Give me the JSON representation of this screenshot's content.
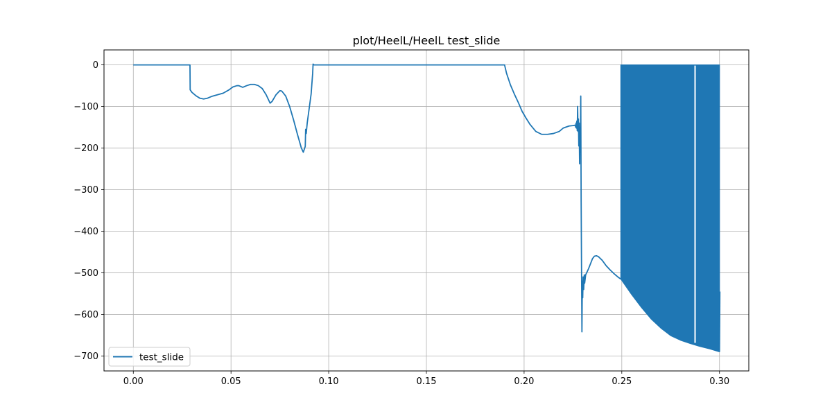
{
  "chart_data": {
    "type": "line",
    "title": "plot/HeelL/HeelL test_slide",
    "xlabel": "",
    "ylabel": "",
    "xlim": [
      -0.015,
      0.315
    ],
    "ylim": [
      -736,
      36
    ],
    "xticks": [
      0.0,
      0.05,
      0.1,
      0.15,
      0.2,
      0.25,
      0.3
    ],
    "xtick_labels": [
      "0.00",
      "0.05",
      "0.10",
      "0.15",
      "0.20",
      "0.25",
      "0.30"
    ],
    "yticks": [
      0,
      -100,
      -200,
      -300,
      -400,
      -500,
      -600,
      -700
    ],
    "ytick_labels": [
      "0",
      "−100",
      "−200",
      "−300",
      "−400",
      "−500",
      "−600",
      "−700"
    ],
    "grid": true,
    "legend": {
      "position": "lower-left",
      "entries": [
        "test_slide"
      ]
    },
    "series": [
      {
        "name": "test_slide",
        "color": "#1f77b4",
        "points": [
          [
            0.0,
            0
          ],
          [
            0.029,
            0
          ],
          [
            0.0291,
            -60
          ],
          [
            0.03,
            -66
          ],
          [
            0.032,
            -74
          ],
          [
            0.034,
            -80
          ],
          [
            0.036,
            -82
          ],
          [
            0.038,
            -80
          ],
          [
            0.04,
            -76
          ],
          [
            0.043,
            -72
          ],
          [
            0.046,
            -68
          ],
          [
            0.049,
            -60
          ],
          [
            0.051,
            -53
          ],
          [
            0.053,
            -50
          ],
          [
            0.054,
            -50
          ],
          [
            0.056,
            -54
          ],
          [
            0.058,
            -50
          ],
          [
            0.06,
            -47
          ],
          [
            0.062,
            -47
          ],
          [
            0.064,
            -50
          ],
          [
            0.066,
            -57
          ],
          [
            0.068,
            -72
          ],
          [
            0.07,
            -92
          ],
          [
            0.071,
            -88
          ],
          [
            0.073,
            -72
          ],
          [
            0.075,
            -62
          ],
          [
            0.076,
            -63
          ],
          [
            0.078,
            -75
          ],
          [
            0.08,
            -100
          ],
          [
            0.082,
            -132
          ],
          [
            0.084,
            -167
          ],
          [
            0.086,
            -200
          ],
          [
            0.087,
            -210
          ],
          [
            0.088,
            -196
          ],
          [
            0.0882,
            -155
          ],
          [
            0.0885,
            -165
          ],
          [
            0.089,
            -140
          ],
          [
            0.09,
            -105
          ],
          [
            0.091,
            -70
          ],
          [
            0.0918,
            -20
          ],
          [
            0.092,
            2
          ],
          [
            0.0925,
            0
          ],
          [
            0.19,
            0
          ],
          [
            0.191,
            -20
          ],
          [
            0.193,
            -48
          ],
          [
            0.195,
            -70
          ],
          [
            0.197,
            -90
          ],
          [
            0.199,
            -112
          ],
          [
            0.201,
            -128
          ],
          [
            0.203,
            -143
          ],
          [
            0.206,
            -160
          ],
          [
            0.209,
            -167
          ],
          [
            0.212,
            -167
          ],
          [
            0.215,
            -165
          ],
          [
            0.218,
            -160
          ],
          [
            0.22,
            -152
          ],
          [
            0.223,
            -147
          ],
          [
            0.225,
            -146
          ],
          [
            0.2262,
            -145
          ],
          [
            0.2264,
            -150
          ],
          [
            0.2266,
            -140
          ],
          [
            0.2268,
            -152
          ],
          [
            0.227,
            -135
          ],
          [
            0.2272,
            -158
          ],
          [
            0.2274,
            -100
          ],
          [
            0.2276,
            -160
          ],
          [
            0.2278,
            -130
          ],
          [
            0.228,
            -195
          ],
          [
            0.2282,
            -140
          ],
          [
            0.2284,
            -238
          ],
          [
            0.2286,
            -150
          ],
          [
            0.2288,
            -210
          ],
          [
            0.229,
            -75
          ],
          [
            0.2292,
            -330
          ],
          [
            0.2294,
            -490
          ],
          [
            0.2296,
            -642
          ],
          [
            0.2298,
            -520
          ],
          [
            0.23,
            -560
          ],
          [
            0.2302,
            -510
          ],
          [
            0.2305,
            -540
          ],
          [
            0.2308,
            -505
          ],
          [
            0.231,
            -525
          ],
          [
            0.2315,
            -505
          ],
          [
            0.232,
            -500
          ],
          [
            0.233,
            -490
          ],
          [
            0.234,
            -478
          ],
          [
            0.235,
            -466
          ],
          [
            0.236,
            -460
          ],
          [
            0.237,
            -459
          ],
          [
            0.238,
            -461
          ],
          [
            0.24,
            -470
          ],
          [
            0.242,
            -483
          ],
          [
            0.244,
            -493
          ],
          [
            0.246,
            -502
          ],
          [
            0.248,
            -510
          ],
          [
            0.2495,
            -515
          ]
        ],
        "oscillation": {
          "start": 0.2495,
          "end": 0.3,
          "upper": 0,
          "lower_envelope": [
            [
              0.2495,
              -515
            ],
            [
              0.255,
              -552
            ],
            [
              0.26,
              -583
            ],
            [
              0.265,
              -611
            ],
            [
              0.27,
              -633
            ],
            [
              0.275,
              -651
            ],
            [
              0.28,
              -662
            ],
            [
              0.285,
              -670
            ],
            [
              0.29,
              -677
            ],
            [
              0.295,
              -683
            ],
            [
              0.3,
              -690
            ]
          ],
          "gaps": [
            0.2875
          ]
        },
        "end_points": [
          [
            0.3,
            -690
          ],
          [
            0.3002,
            -545
          ]
        ]
      }
    ]
  }
}
